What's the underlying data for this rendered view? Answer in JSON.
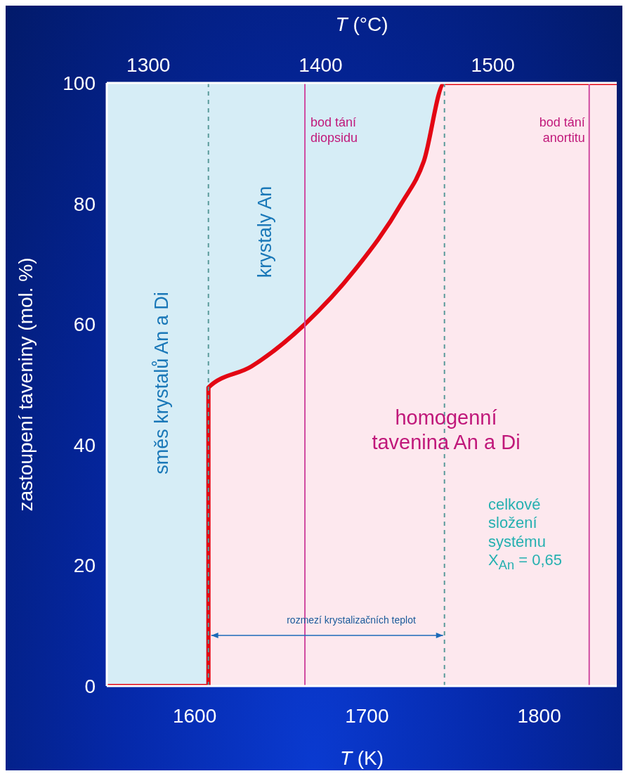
{
  "chart_data": {
    "type": "area",
    "xlabel": "T (K)",
    "x2label": "T (°C)",
    "ylabel": "zastoupení taveniny (mol. %)",
    "x": [
      1549,
      1608,
      1608,
      1633,
      1664,
      1693,
      1720,
      1733,
      1745,
      1845
    ],
    "series": [
      {
        "color": "#e30613",
        "values": [
          0,
          0,
          49.5,
          53,
          60,
          69,
          80,
          87,
          100,
          100
        ]
      }
    ],
    "xlim": [
      1549,
      1845
    ],
    "xticks": [
      1600,
      1700,
      1800
    ],
    "x2lim": [
      1275.85,
      1571.85
    ],
    "x2ticks": [
      1300,
      1400,
      1500
    ],
    "ylim": [
      0,
      100
    ],
    "yticks": [
      0,
      20,
      40,
      60,
      80,
      100
    ],
    "ref_lines": [
      {
        "axis": "x",
        "value": 1608,
        "label": null,
        "color": "#5a9a9a",
        "line_style": "dashed"
      },
      {
        "axis": "x",
        "value": 1745,
        "label": null,
        "color": "#5a9a9a",
        "line_style": "dashed"
      },
      {
        "axis": "x",
        "value": 1664,
        "label": "bod tání diopsidu",
        "color": "#d04aa0",
        "line_style": "solid"
      },
      {
        "axis": "x",
        "value": 1829,
        "label": "bod tání anortitu",
        "color": "#d04aa0",
        "line_style": "solid"
      }
    ],
    "annotations": [
      "směs krystalů An a Di",
      "krystaly An",
      "homogenní tavenina An a Di",
      "celkové složení systému X$_{An}$ = 0,65",
      "rozmezí krystalizačních teplot"
    ]
  }
}
